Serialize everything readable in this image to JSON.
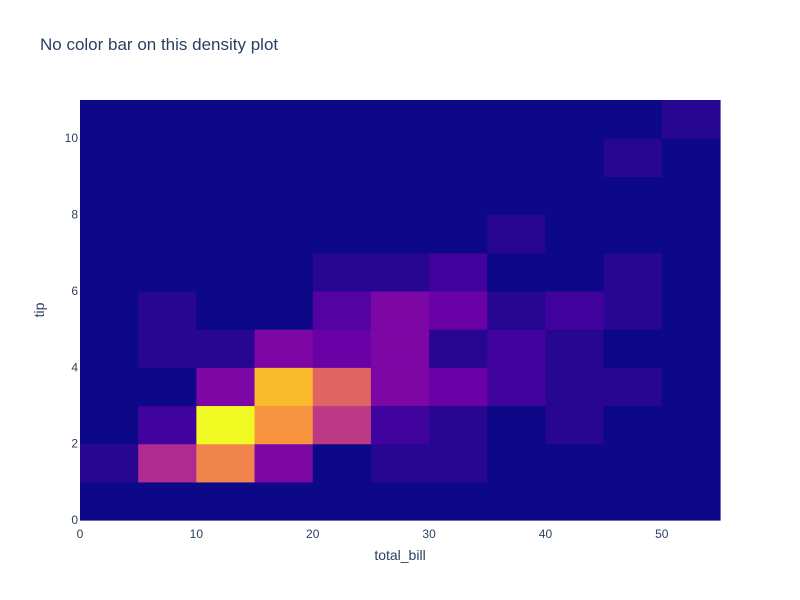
{
  "chart_data": {
    "type": "heatmap",
    "title": "No color bar on this density plot",
    "xlabel": "total_bill",
    "ylabel": "tip",
    "colorscale": "plasma",
    "show_colorbar": false,
    "grid": false,
    "x_bins": [
      0,
      5,
      10,
      15,
      20,
      25,
      30,
      35,
      40,
      45,
      50,
      55
    ],
    "y_bins": [
      0,
      1,
      2,
      3,
      4,
      5,
      6,
      7,
      8,
      9,
      10,
      11
    ],
    "xlim": [
      0,
      55
    ],
    "ylim": [
      0,
      11
    ],
    "x_ticks": [
      0,
      10,
      20,
      30,
      40,
      50
    ],
    "y_ticks": [
      0,
      2,
      4,
      6,
      8,
      10
    ],
    "z": [
      [
        0,
        0,
        0,
        0,
        0,
        0,
        0,
        0,
        0,
        0,
        0
      ],
      [
        1,
        8,
        14,
        5,
        0,
        1,
        1,
        0,
        0,
        0,
        0
      ],
      [
        0,
        2,
        20,
        15,
        9,
        2,
        1,
        0,
        1,
        0,
        0
      ],
      [
        0,
        0,
        5,
        17,
        12,
        5,
        4,
        2,
        1,
        1,
        0
      ],
      [
        0,
        1,
        1,
        5,
        4,
        5,
        1,
        2,
        1,
        0,
        0
      ],
      [
        0,
        1,
        0,
        0,
        3,
        5,
        4,
        1,
        2,
        1,
        0
      ],
      [
        0,
        0,
        0,
        0,
        1,
        1,
        2,
        0,
        0,
        1,
        0
      ],
      [
        0,
        0,
        0,
        0,
        0,
        0,
        0,
        1,
        0,
        0,
        0
      ],
      [
        0,
        0,
        0,
        0,
        0,
        0,
        0,
        0,
        0,
        0,
        0
      ],
      [
        0,
        0,
        0,
        0,
        0,
        0,
        0,
        0,
        0,
        1,
        0
      ],
      [
        0,
        0,
        0,
        0,
        0,
        0,
        0,
        0,
        0,
        0,
        1
      ]
    ]
  }
}
